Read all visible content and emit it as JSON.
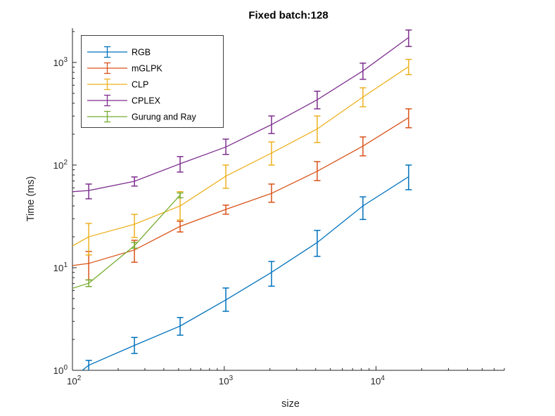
{
  "figure": {
    "background": "#ffffff"
  },
  "chart_data": {
    "type": "line",
    "title": "Fixed batch:128",
    "xlabel": "size",
    "ylabel": "Time (ms)",
    "xscale": "log",
    "yscale": "log",
    "xlim": [
      100,
      70000
    ],
    "ylim": [
      1,
      2160
    ],
    "grid": false,
    "x_major_ticks": [
      100,
      1000,
      10000
    ],
    "x_tick_labels": [
      "10^2",
      "10^3",
      "10^4"
    ],
    "y_major_ticks": [
      1,
      10,
      100,
      1000
    ],
    "y_tick_labels": [
      "10^0",
      "10^1",
      "10^2",
      "10^3"
    ],
    "axis_color": "#262626",
    "legend": {
      "location": "northwest",
      "entries": [
        "RGB",
        "mGLPK",
        "CLP",
        "CPLEX",
        "Gurung and Ray"
      ]
    },
    "series": [
      {
        "name": "RGB",
        "color": "#0072BD",
        "x": [
          128,
          256,
          512,
          1024,
          2048,
          4096,
          8192,
          16384
        ],
        "y": [
          1.12,
          1.75,
          2.7,
          4.85,
          9.0,
          17.6,
          40,
          77
        ],
        "err_lo": [
          0.99,
          1.46,
          2.2,
          3.76,
          6.6,
          12.9,
          29.5,
          57.5
        ],
        "err_hi": [
          1.25,
          2.09,
          3.27,
          6.34,
          11.5,
          23.1,
          49,
          100
        ],
        "lead_in": {
          "x": 100,
          "y": 0.84
        }
      },
      {
        "name": "mGLPK",
        "color": "#D95319",
        "x": [
          128,
          256,
          512,
          1024,
          2048,
          4096,
          8192,
          16384
        ],
        "y": [
          11.0,
          14.9,
          25.3,
          37,
          53,
          87,
          153,
          290
        ],
        "err_lo": [
          7.6,
          11.3,
          22.3,
          33.2,
          43.4,
          70.6,
          123,
          231
        ],
        "err_hi": [
          14.4,
          18.5,
          28.3,
          40.7,
          65.3,
          108,
          188,
          353
        ],
        "lead_in": {
          "x": 100,
          "y": 10.5
        }
      },
      {
        "name": "CLP",
        "color": "#EDB120",
        "x": [
          128,
          256,
          512,
          1024,
          2048,
          4096,
          8192,
          16384
        ],
        "y": [
          20,
          26.5,
          40,
          78,
          131,
          225,
          460,
          910
        ],
        "err_lo": [
          13.3,
          19.7,
          29.2,
          59.4,
          100,
          166,
          370,
          760
        ],
        "err_hi": [
          27,
          33.1,
          55.1,
          100,
          168,
          301,
          566,
          1070
        ],
        "lead_in": {
          "x": 100,
          "y": 16.3
        }
      },
      {
        "name": "CPLEX",
        "color": "#7E2F8E",
        "x": [
          128,
          256,
          512,
          1024,
          2048,
          4096,
          8192,
          16384
        ],
        "y": [
          56.5,
          69.5,
          103,
          150,
          248,
          433,
          827,
          1750
        ],
        "err_lo": [
          46.9,
          62.4,
          85.5,
          127,
          203,
          353,
          685,
          1430
        ],
        "err_hi": [
          65.3,
          76.6,
          121,
          179,
          301,
          524,
          984,
          2070
        ],
        "lead_in": {
          "x": 100,
          "y": 55
        }
      },
      {
        "name": "Gurung and Ray",
        "color": "#77AC30",
        "x": [
          128,
          256,
          512
        ],
        "y": [
          7.05,
          16.4,
          51
        ],
        "err_lo": [
          6.55,
          15.5,
          48
        ],
        "err_hi": [
          7.6,
          17.6,
          53.5
        ],
        "lead_in": {
          "x": 100,
          "y": 6.3
        }
      }
    ]
  }
}
